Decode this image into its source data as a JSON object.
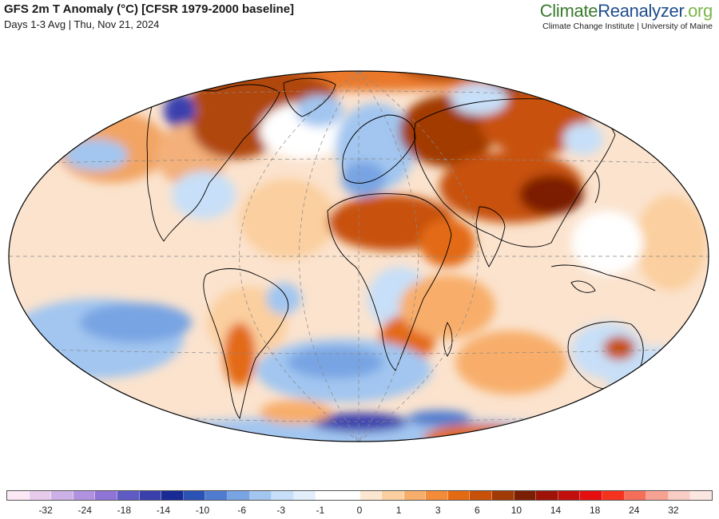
{
  "header": {
    "title": "GFS 2m T Anomaly (°C) [CFSR 1979-2000 baseline]",
    "subtitle": "Days 1-3 Avg | Thu, Nov 21, 2024"
  },
  "brand": {
    "name_part1": "Climate",
    "name_part2": "Reanalyzer",
    "name_part3": ".org",
    "affiliation": "Climate Change Institute | University of Maine"
  },
  "colorbar": {
    "unit": "°C",
    "tick_labels": [
      "-32",
      "-24",
      "-18",
      "-14",
      "-10",
      "-6",
      "-3",
      "-1",
      "0",
      "1",
      "3",
      "6",
      "10",
      "14",
      "18",
      "24",
      "32"
    ],
    "colors": [
      "#fbe8f4",
      "#e6cbeb",
      "#cdb1e6",
      "#b192e0",
      "#8e74d6",
      "#5f5bc4",
      "#3a3fae",
      "#172a96",
      "#2b53b5",
      "#4f7bd0",
      "#78a4e3",
      "#a2c6f0",
      "#c7dff8",
      "#e3eefb",
      "#ffffff",
      "#ffffff",
      "#fde6d0",
      "#fbcf9f",
      "#f8ae6b",
      "#f38b38",
      "#e36a12",
      "#c75108",
      "#a23a05",
      "#7b1f03",
      "#9e1208",
      "#c30e0e",
      "#e60f0f",
      "#f5321e",
      "#f56e5a",
      "#f6a293",
      "#f8cdc4",
      "#fbe6e2"
    ]
  }
}
